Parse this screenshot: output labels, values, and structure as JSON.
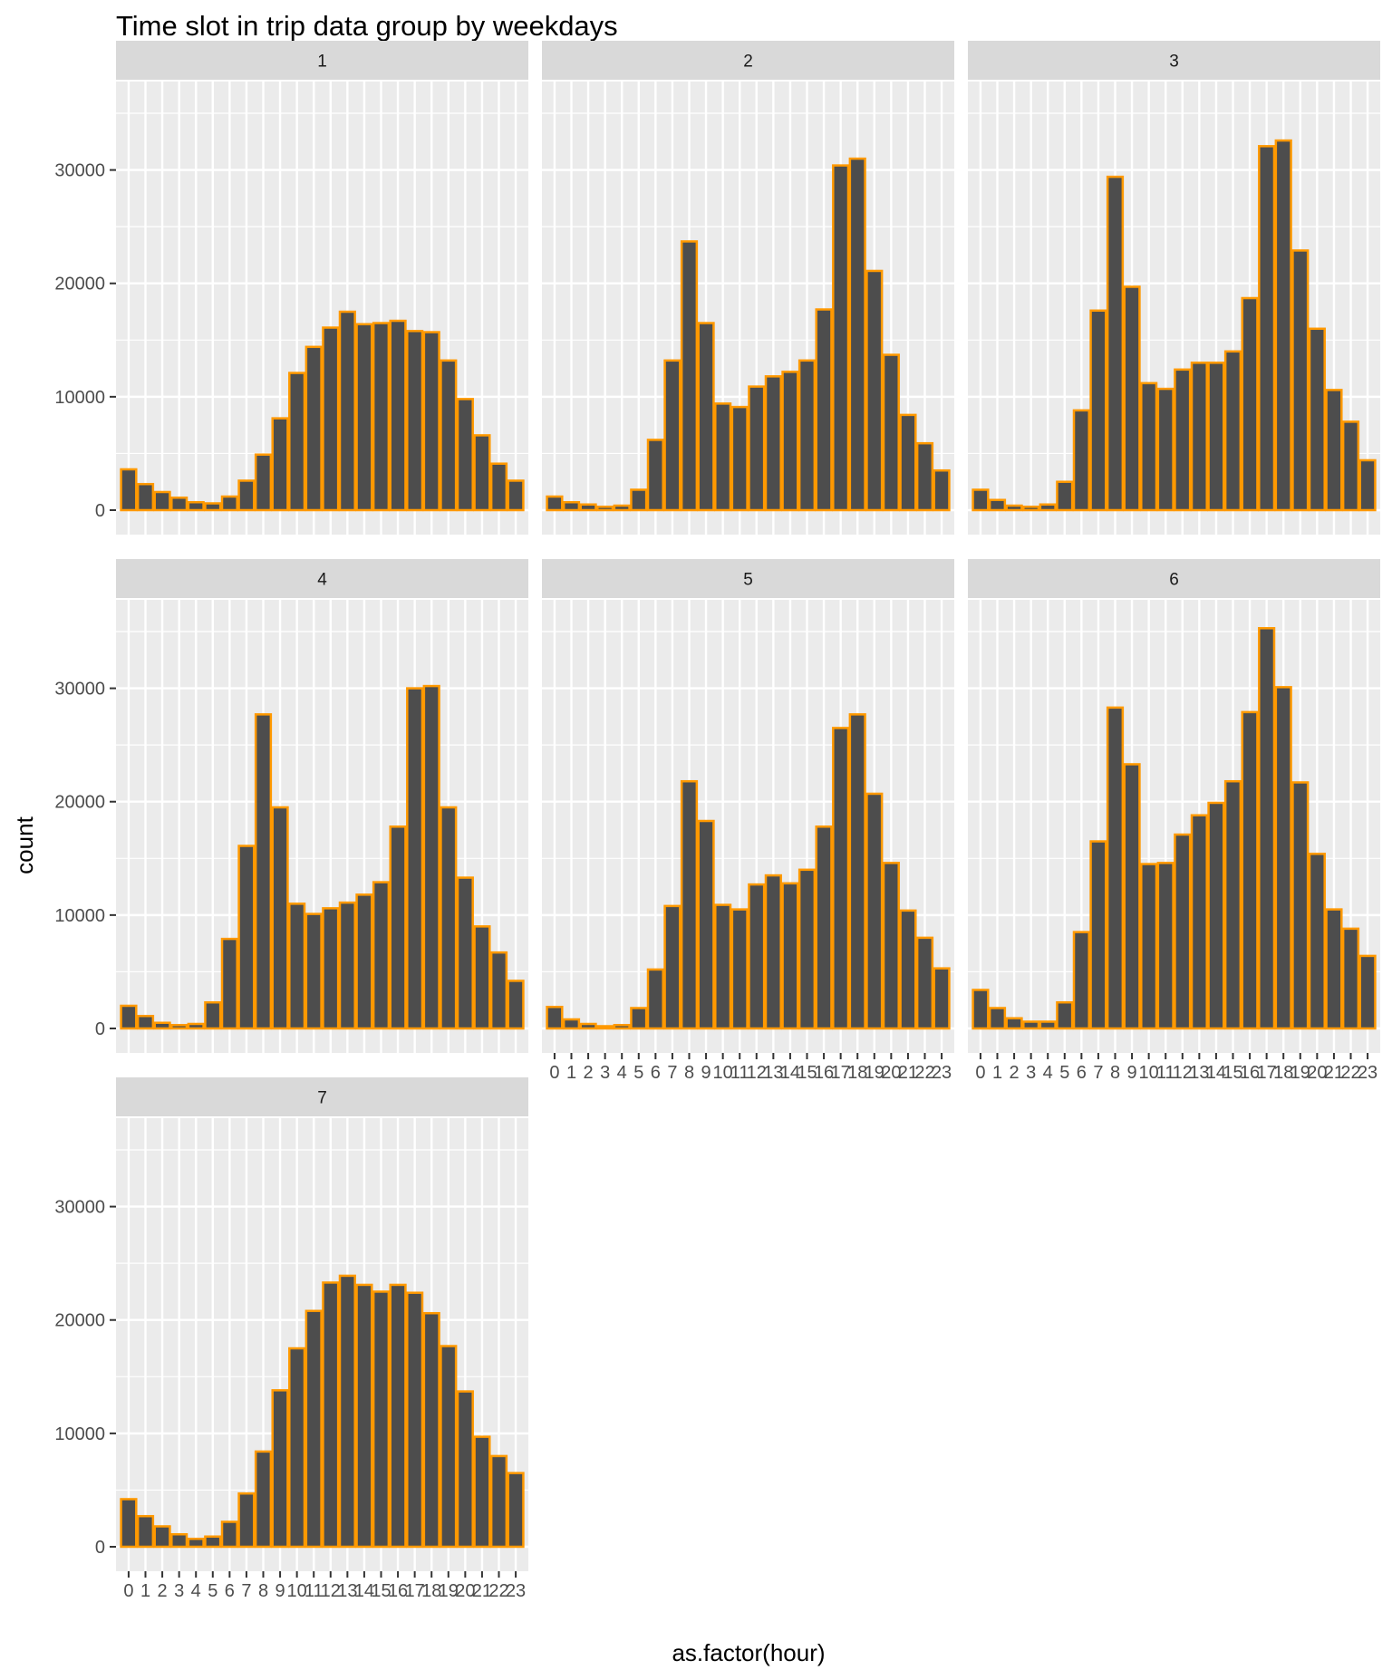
{
  "chart_data": {
    "type": "bar",
    "title": "Time slot in trip data group by weekdays",
    "xlabel": "as.factor(hour)",
    "ylabel": "count",
    "ylim": [
      0,
      37000
    ],
    "yticks": [
      0,
      10000,
      20000,
      30000
    ],
    "categories": [
      "0",
      "1",
      "2",
      "3",
      "4",
      "5",
      "6",
      "7",
      "8",
      "9",
      "10",
      "11",
      "12",
      "13",
      "14",
      "15",
      "16",
      "17",
      "18",
      "19",
      "20",
      "21",
      "22",
      "23"
    ],
    "grid": true,
    "colors": {
      "bar_fill": "#4d4d4d",
      "bar_outline": "#ff9900",
      "panel_bg": "#ebebeb",
      "strip_bg": "#d9d9d9",
      "grid": "#ffffff"
    },
    "facets": [
      {
        "name": "1",
        "values": [
          3600,
          2300,
          1600,
          1100,
          700,
          600,
          1200,
          2600,
          4900,
          8100,
          12100,
          14400,
          16100,
          17500,
          16400,
          16500,
          16700,
          15800,
          15700,
          13200,
          9800,
          6600,
          4100,
          2600
        ]
      },
      {
        "name": "2",
        "values": [
          1200,
          700,
          500,
          300,
          400,
          1800,
          6200,
          13200,
          23700,
          16500,
          9400,
          9100,
          10900,
          11800,
          12200,
          13200,
          17700,
          30400,
          31000,
          21100,
          13700,
          8400,
          5900,
          3500
        ]
      },
      {
        "name": "3",
        "values": [
          1800,
          900,
          400,
          300,
          500,
          2500,
          8800,
          17600,
          29400,
          19700,
          11200,
          10700,
          12400,
          13000,
          13000,
          14000,
          18700,
          32100,
          32600,
          22900,
          16000,
          10600,
          7800,
          4400
        ]
      },
      {
        "name": "4",
        "values": [
          2000,
          1100,
          500,
          300,
          400,
          2300,
          7900,
          16100,
          27700,
          19500,
          11000,
          10100,
          10600,
          11100,
          11800,
          12900,
          17800,
          30000,
          30200,
          19500,
          13300,
          9000,
          6700,
          4200
        ]
      },
      {
        "name": "5",
        "values": [
          1900,
          800,
          400,
          200,
          300,
          1800,
          5200,
          10800,
          21800,
          18300,
          10900,
          10500,
          12700,
          13500,
          12800,
          14000,
          17800,
          26500,
          27700,
          20700,
          14600,
          10400,
          8000,
          5300
        ]
      },
      {
        "name": "6",
        "values": [
          3400,
          1800,
          900,
          600,
          600,
          2300,
          8500,
          16500,
          28300,
          23300,
          14500,
          14600,
          17100,
          18800,
          19900,
          21800,
          27900,
          35300,
          30100,
          21700,
          15400,
          10500,
          8800,
          6400
        ]
      },
      {
        "name": "7",
        "values": [
          4200,
          2700,
          1800,
          1100,
          700,
          900,
          2200,
          4700,
          8400,
          13800,
          17500,
          20800,
          23300,
          23900,
          23100,
          22500,
          23100,
          22400,
          20600,
          17700,
          13700,
          9700,
          8000,
          6500
        ]
      }
    ]
  }
}
